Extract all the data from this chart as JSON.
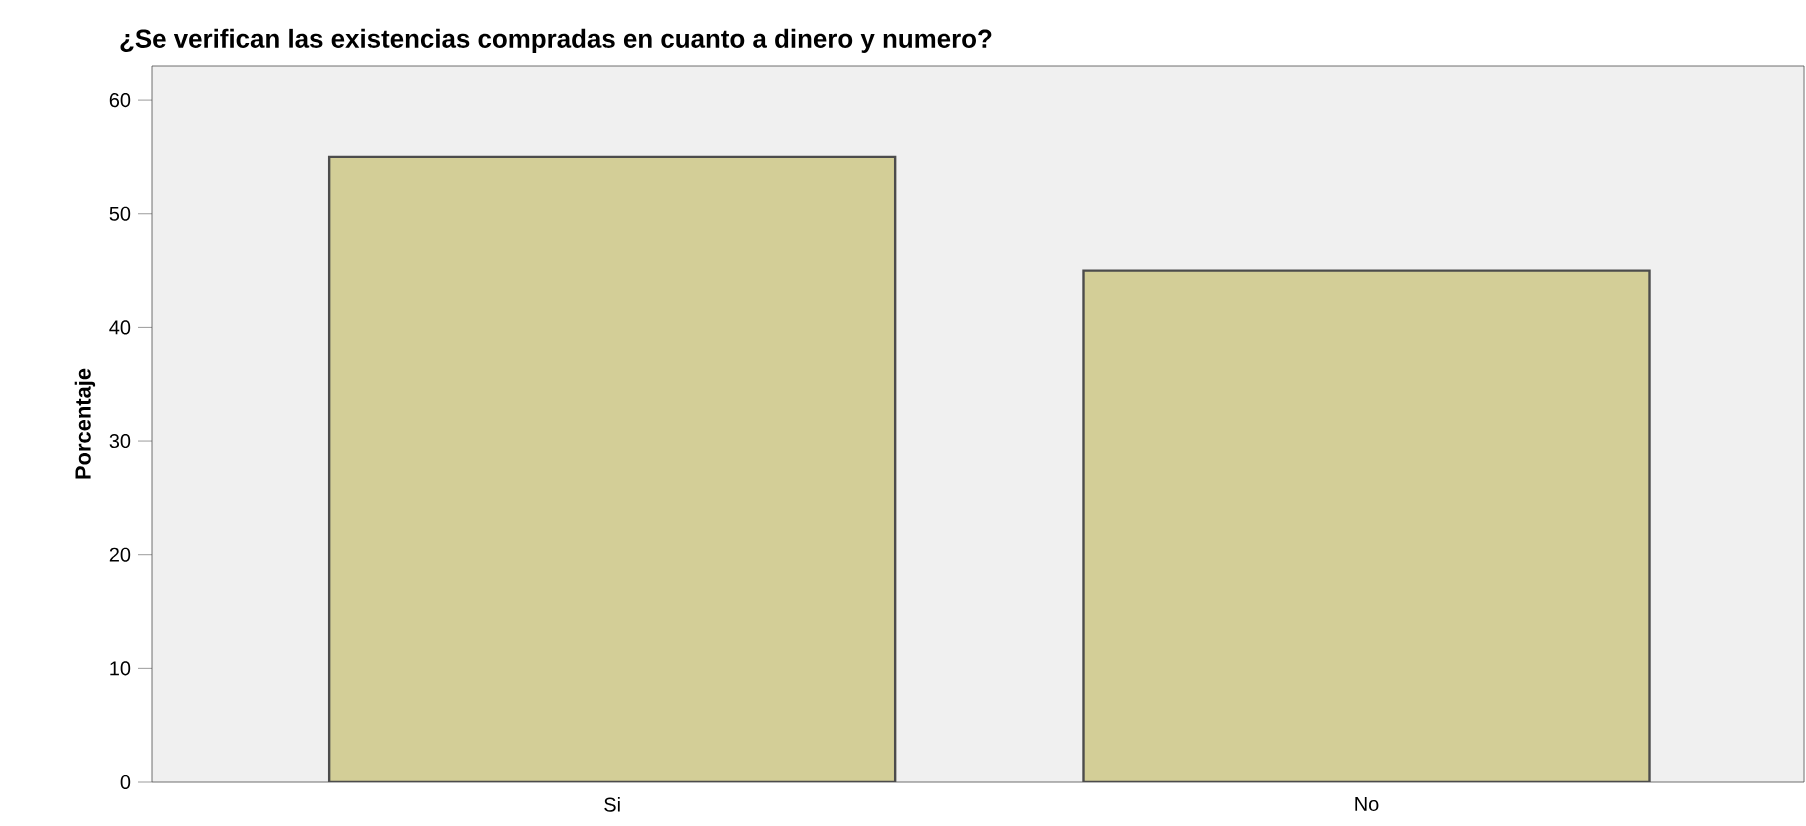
{
  "chart_data": {
    "type": "bar",
    "title": "¿Se verifican las existencias compradas en cuanto a dinero y numero?",
    "ylabel": "Porcentaje",
    "categories": [
      "Si",
      "No"
    ],
    "values": [
      55,
      45
    ],
    "color": "#d3ce97",
    "ylim": [
      0,
      63
    ],
    "yticks": [
      0,
      10,
      20,
      30,
      40,
      50,
      60
    ]
  }
}
